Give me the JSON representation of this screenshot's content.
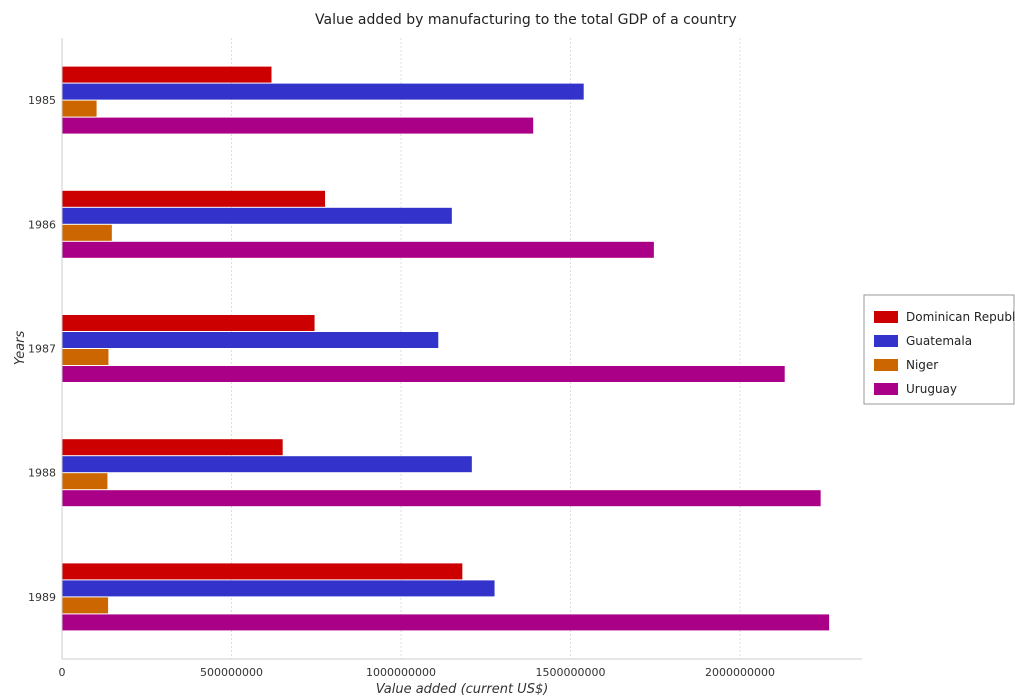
{
  "chart_data": {
    "type": "bar",
    "orientation": "horizontal",
    "title": "Value added by manufacturing to the total GDP of a country",
    "xlabel": "Value added (current US$)",
    "ylabel": "Years",
    "categories": [
      "1985",
      "1986",
      "1987",
      "1988",
      "1989"
    ],
    "x_ticks": [
      "0",
      "500000000",
      "1000000000",
      "1500000000",
      "2000000000"
    ],
    "xlim": [
      0,
      2360000000
    ],
    "grid": true,
    "legend_position": "right",
    "series": [
      {
        "name": "Dominican Republic",
        "color": "#cc0000",
        "values": [
          618000000,
          776000000,
          745000000,
          651000000,
          1181000000
        ]
      },
      {
        "name": "Guatemala",
        "color": "#3333cc",
        "values": [
          1539000000,
          1150000000,
          1110000000,
          1209000000,
          1276000000
        ]
      },
      {
        "name": "Niger",
        "color": "#cc6600",
        "values": [
          102000000,
          147000000,
          137000000,
          134000000,
          136000000
        ]
      },
      {
        "name": "Uruguay",
        "color": "#aa0088",
        "values": [
          1390000000,
          1746000000,
          2132000000,
          2238000000,
          2263000000
        ]
      }
    ]
  }
}
